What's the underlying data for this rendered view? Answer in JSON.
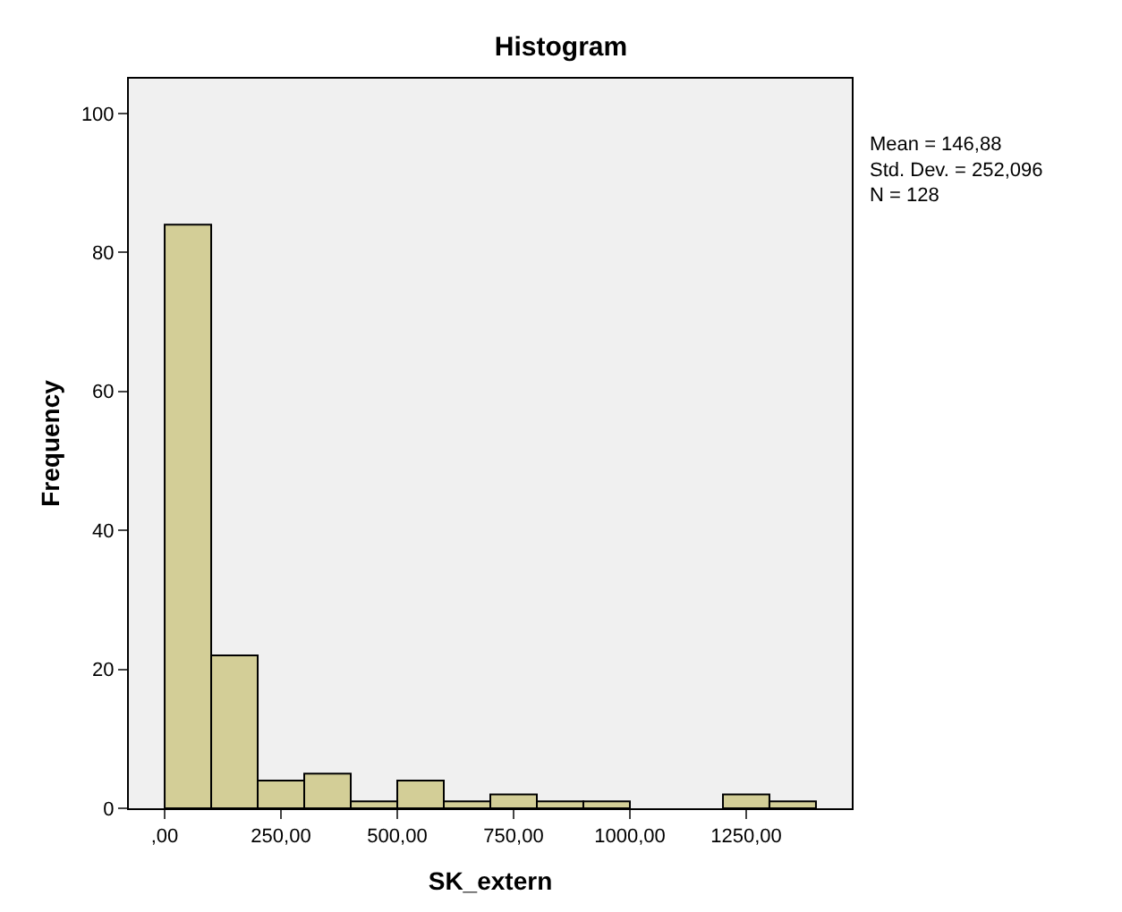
{
  "chart_data": {
    "type": "histogram",
    "title": "Histogram",
    "xlabel": "SK_extern",
    "ylabel": "Frequency",
    "bins": [
      0,
      100,
      200,
      300,
      400,
      500,
      600,
      700,
      800,
      900,
      1000,
      1100,
      1200,
      1300,
      1400
    ],
    "values": [
      84,
      22,
      4,
      5,
      1,
      4,
      1,
      2,
      1,
      1,
      0,
      0,
      2,
      1
    ],
    "color": "#d3ce97",
    "xlim": [
      -77,
      1477
    ],
    "xticks": [
      {
        "value": 0,
        "label": ",00"
      },
      {
        "value": 250,
        "label": "250,00"
      },
      {
        "value": 500,
        "label": "500,00"
      },
      {
        "value": 750,
        "label": "750,00"
      },
      {
        "value": 1000,
        "label": "1000,00"
      },
      {
        "value": 1250,
        "label": "1250,00"
      }
    ],
    "ylim": [
      0,
      105
    ],
    "yticks": [
      0,
      20,
      40,
      60,
      80,
      100
    ],
    "grid": false,
    "legend": false,
    "annotations": [
      "Mean = 146,88",
      "Std. Dev. = 252,096",
      "N = 128"
    ]
  }
}
